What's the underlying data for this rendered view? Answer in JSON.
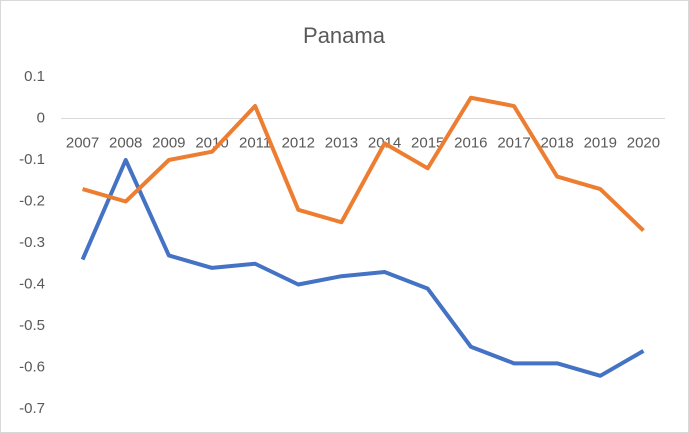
{
  "chart_data": {
    "type": "line",
    "title": "Panama",
    "categories": [
      "2007",
      "2008",
      "2009",
      "2010",
      "2011",
      "2012",
      "2013",
      "2014",
      "2015",
      "2016",
      "2017",
      "2018",
      "2019",
      "2020"
    ],
    "series": [
      {
        "color": "#4472c4",
        "values": [
          -0.34,
          -0.1,
          -0.33,
          -0.36,
          -0.35,
          -0.4,
          -0.38,
          -0.37,
          -0.41,
          -0.55,
          -0.59,
          -0.59,
          -0.62,
          -0.56
        ]
      },
      {
        "color": "#ed7d31",
        "values": [
          -0.17,
          -0.2,
          -0.1,
          -0.08,
          0.03,
          -0.22,
          -0.25,
          -0.06,
          -0.12,
          0.05,
          0.03,
          -0.14,
          -0.17,
          -0.27
        ]
      }
    ],
    "ylim": [
      -0.7,
      0.1
    ],
    "yticks": [
      -0.7,
      -0.6,
      -0.5,
      -0.4,
      -0.3,
      -0.2,
      -0.1,
      0,
      0.1
    ]
  }
}
